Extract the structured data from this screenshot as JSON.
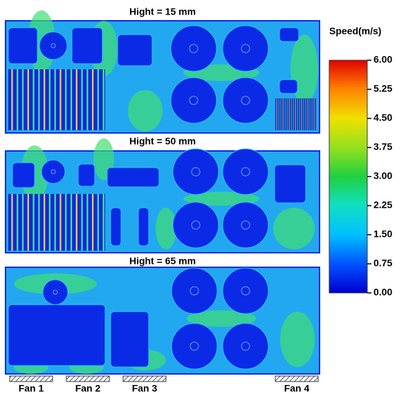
{
  "panels": [
    {
      "title": "Hight = 15 mm"
    },
    {
      "title": "Hight = 50 mm"
    },
    {
      "title": "Hight = 65 mm"
    }
  ],
  "colorbar": {
    "title": "Speed(m/s)",
    "ticks": [
      "6.00",
      "5.25",
      "4.50",
      "3.75",
      "3.00",
      "2.25",
      "1.50",
      "0.75",
      "0.00"
    ]
  },
  "fans": [
    "Fan 1",
    "Fan 2",
    "Fan 3",
    "Fan 4"
  ]
}
